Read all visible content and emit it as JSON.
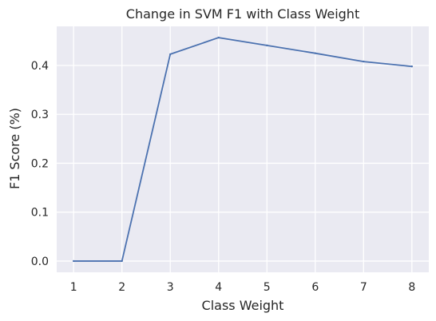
{
  "chart_data": {
    "type": "line",
    "title": "Change in SVM F1 with Class Weight",
    "xlabel": "Class Weight",
    "ylabel": "F1 Score (%)",
    "x": [
      1,
      2,
      3,
      4,
      5,
      6,
      7,
      8
    ],
    "xticks": [
      "1",
      "2",
      "3",
      "4",
      "5",
      "6",
      "7",
      "8"
    ],
    "yticks": [
      "0.0",
      "0.1",
      "0.2",
      "0.3",
      "0.4"
    ],
    "ytick_values": [
      0.0,
      0.1,
      0.2,
      0.3,
      0.4
    ],
    "series": [
      {
        "values": [
          0.0,
          0.0,
          0.423,
          0.457,
          0.441,
          0.425,
          0.408,
          0.398
        ]
      }
    ],
    "xlim": [
      0.65,
      8.35
    ],
    "ylim": [
      -0.023,
      0.48
    ],
    "grid": true,
    "legend": "none",
    "colors": {
      "background": "#eaeaf2",
      "grid": "#ffffff",
      "line": "#4c72b0",
      "text": "#262626"
    }
  }
}
